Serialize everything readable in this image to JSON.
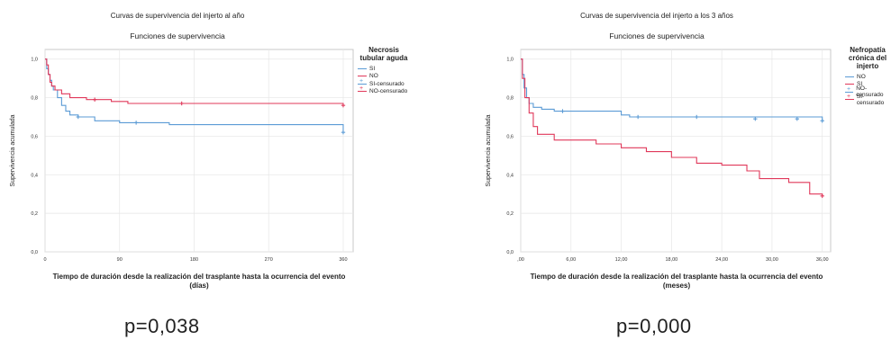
{
  "charts": [
    {
      "title": "Curvas de supervivencia del injerto al año",
      "subtitle": "Funciones de supervivencia",
      "xlabel": "Tiempo de duración desde la realización del trasplante hasta la ocurrencia del evento (días)",
      "ylabel": "Supervivencia acumulada",
      "legend_title": "Necrosis tubular aguda",
      "legend_items": [
        "SI",
        "NO",
        "SI-censurado",
        "NO-censurado"
      ],
      "yticks": [
        "0,0",
        "0,2",
        "0,4",
        "0,6",
        "0,8",
        "1,0"
      ],
      "xticks": [
        "0",
        "90",
        "180",
        "270",
        "360"
      ],
      "p_value": "p=0,038"
    },
    {
      "title": "Curvas de supervivencia del injerto a los 3 años",
      "subtitle": "Funciones de supervivencia",
      "xlabel": "Tiempo de duración desde la realización del trasplante hasta la ocurrencia del evento (meses)",
      "ylabel": "Supervivencia acumulada",
      "legend_title": "Nefropatía crónica del injerto",
      "legend_items": [
        "NO",
        "SI",
        "NO-censurado",
        "SI-censurado"
      ],
      "yticks": [
        "0,0",
        "0,2",
        "0,4",
        "0,6",
        "0,8",
        "1,0"
      ],
      "xticks": [
        ",00",
        "6,00",
        "12,00",
        "18,00",
        "24,00",
        "30,00",
        "36,00"
      ],
      "p_value": "p=0,000"
    }
  ],
  "colors": {
    "blue": "#5b9bd5",
    "red": "#e0385a"
  },
  "chart_data": [
    {
      "type": "line",
      "title": "Curvas de supervivencia del injerto al año",
      "subtitle": "Funciones de supervivencia",
      "xlabel": "Tiempo de duración desde la realización del trasplante hasta la ocurrencia del evento (días)",
      "ylabel": "Supervivencia acumulada",
      "xlim": [
        0,
        372
      ],
      "ylim": [
        0,
        1.05
      ],
      "legend_position": "right",
      "grid": true,
      "series": [
        {
          "name": "SI",
          "color": "#5b9bd5",
          "x": [
            0,
            2,
            4,
            6,
            8,
            10,
            15,
            20,
            25,
            30,
            40,
            60,
            90,
            150,
            360
          ],
          "y": [
            1.0,
            0.95,
            0.92,
            0.89,
            0.86,
            0.84,
            0.8,
            0.76,
            0.73,
            0.71,
            0.7,
            0.68,
            0.67,
            0.66,
            0.62
          ],
          "censored_x": [
            40,
            110,
            360
          ],
          "censored_y": [
            0.7,
            0.67,
            0.62
          ]
        },
        {
          "name": "NO",
          "color": "#e0385a",
          "x": [
            0,
            2,
            4,
            6,
            8,
            12,
            20,
            30,
            50,
            80,
            100,
            360
          ],
          "y": [
            1.0,
            0.97,
            0.92,
            0.88,
            0.86,
            0.84,
            0.82,
            0.8,
            0.79,
            0.78,
            0.77,
            0.76
          ],
          "censored_x": [
            60,
            165,
            360
          ],
          "censored_y": [
            0.79,
            0.77,
            0.76
          ]
        }
      ]
    },
    {
      "type": "line",
      "title": "Curvas de supervivencia del injerto a los 3 años",
      "subtitle": "Funciones de supervivencia",
      "xlabel": "Tiempo de duración desde la realización del trasplante hasta la ocurrencia del evento (meses)",
      "ylabel": "Supervivencia acumulada",
      "xlim": [
        0,
        37
      ],
      "ylim": [
        0,
        1.05
      ],
      "legend_position": "right",
      "grid": true,
      "series": [
        {
          "name": "NO",
          "color": "#5b9bd5",
          "x": [
            0,
            0.2,
            0.4,
            0.7,
            1.0,
            1.5,
            2.5,
            4.0,
            12.0,
            13.0,
            36.0
          ],
          "y": [
            1.0,
            0.92,
            0.85,
            0.8,
            0.77,
            0.75,
            0.74,
            0.73,
            0.71,
            0.7,
            0.68
          ],
          "censored_x": [
            5,
            14,
            21,
            28,
            33,
            36
          ],
          "censored_y": [
            0.73,
            0.7,
            0.7,
            0.69,
            0.69,
            0.68
          ]
        },
        {
          "name": "SI",
          "color": "#e0385a",
          "x": [
            0,
            0.2,
            0.5,
            1.0,
            1.5,
            2.0,
            4.0,
            9.0,
            12.0,
            15.0,
            18.0,
            21.0,
            24.0,
            27.0,
            28.5,
            32.0,
            34.5,
            36.0
          ],
          "y": [
            1.0,
            0.9,
            0.8,
            0.72,
            0.65,
            0.61,
            0.58,
            0.56,
            0.54,
            0.52,
            0.49,
            0.46,
            0.45,
            0.42,
            0.38,
            0.36,
            0.3,
            0.29
          ],
          "censored_x": [
            36
          ],
          "censored_y": [
            0.29
          ]
        }
      ]
    }
  ]
}
